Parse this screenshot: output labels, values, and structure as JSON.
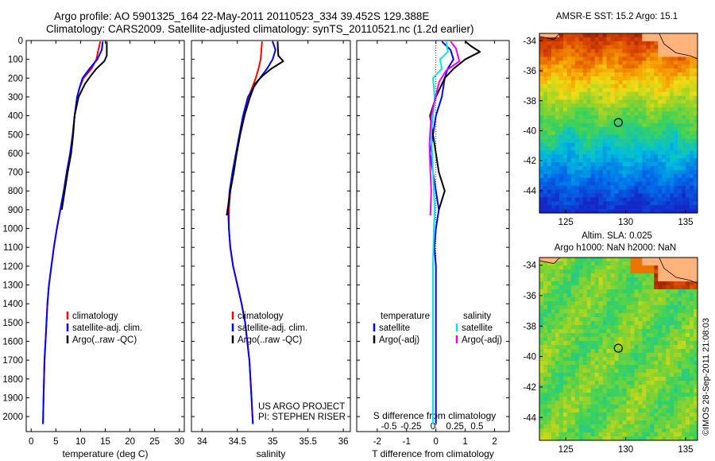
{
  "header": {
    "line1": "Argo profile: AO 5901325_164 22-May-2011 20110523_334 39.452S 129.388E",
    "line2": "Climatology: CARS2009. Satellite-adjusted climatology: synTS_20110521.nc (1.2d earlier)"
  },
  "colors": {
    "climatology": "#ff0000",
    "satellite": "#0000ff",
    "argo": "#000000",
    "sal_satellite": "#00e5ee",
    "sal_argo": "#ee00ee"
  },
  "chart_data": [
    {
      "type": "line",
      "name": "temperature-profile",
      "xlabel": "temperature (deg C)",
      "ylabel": "",
      "xlim": [
        -1,
        31
      ],
      "ylim": [
        2080,
        0
      ],
      "xticks": [
        0,
        5,
        10,
        15,
        20,
        25,
        30
      ],
      "yticks": [
        0,
        100,
        200,
        300,
        400,
        500,
        600,
        700,
        800,
        900,
        1000,
        1100,
        1200,
        1300,
        1400,
        1500,
        1600,
        1700,
        1800,
        1900,
        2000
      ],
      "legend": [
        "climatology",
        "satellite-adj. clim.",
        "Argo(..raw -QC)"
      ],
      "series": [
        {
          "name": "climatology",
          "x": [
            14.0,
            13.6,
            13.2,
            12.2,
            10.6,
            9.8,
            9.3,
            8.8,
            8.4,
            7.9,
            7.2,
            6.6,
            5.9,
            5.2,
            4.6,
            4.1,
            3.6,
            3.3,
            3.1,
            2.9,
            2.7,
            2.5,
            2.4
          ],
          "y": [
            5,
            50,
            100,
            150,
            200,
            250,
            300,
            400,
            500,
            600,
            700,
            800,
            900,
            1000,
            1100,
            1200,
            1300,
            1400,
            1500,
            1600,
            1700,
            1900,
            2040
          ]
        },
        {
          "name": "satellite-adj. clim.",
          "x": [
            14.5,
            14.3,
            13.4,
            11.8,
            10.4,
            9.8,
            9.3,
            8.8,
            8.4,
            7.9,
            7.2,
            6.6,
            5.9,
            5.2,
            4.6,
            4.1,
            3.6,
            3.3,
            3.1,
            2.9,
            2.7,
            2.5,
            2.4
          ],
          "y": [
            5,
            50,
            100,
            150,
            200,
            250,
            300,
            400,
            500,
            600,
            700,
            800,
            900,
            1000,
            1100,
            1200,
            1300,
            1400,
            1500,
            1600,
            1700,
            1900,
            2040
          ]
        },
        {
          "name": "Argo(..raw -QC)",
          "x": [
            15.3,
            15.3,
            14.8,
            13.2,
            12.0,
            10.9,
            9.6,
            8.8,
            8.5,
            8.1,
            7.4,
            6.8,
            6.2
          ],
          "y": [
            5,
            80,
            110,
            150,
            190,
            230,
            300,
            400,
            500,
            600,
            700,
            800,
            900
          ]
        }
      ]
    },
    {
      "type": "line",
      "name": "salinity-profile",
      "xlabel": "salinity",
      "xlim": [
        33.85,
        36.1
      ],
      "ylim": [
        2080,
        0
      ],
      "xticks": [
        34,
        34.5,
        35,
        35.5,
        36
      ],
      "xticklabels": [
        "34",
        "34.5",
        "35",
        "35.5",
        "36"
      ],
      "legend": [
        "climatology",
        "satellite-adj. clim.",
        "Argo(..raw -QC)"
      ],
      "annotation": [
        "US ARGO PROJECT",
        "PI: STEPHEN RISER"
      ],
      "series": [
        {
          "name": "climatology",
          "x": [
            34.85,
            34.84,
            34.83,
            34.8,
            34.76,
            34.71,
            34.66,
            34.6,
            34.54,
            34.49,
            34.44,
            34.4,
            34.38,
            34.38,
            34.4,
            34.44,
            34.5,
            34.56,
            34.61,
            34.64,
            34.67,
            34.7,
            34.72
          ],
          "y": [
            5,
            50,
            100,
            150,
            200,
            250,
            300,
            400,
            500,
            600,
            700,
            800,
            900,
            1000,
            1100,
            1200,
            1300,
            1400,
            1500,
            1600,
            1700,
            1900,
            2040
          ]
        },
        {
          "name": "satellite-adj. clim.",
          "x": [
            35.0,
            35.04,
            35.0,
            34.92,
            34.82,
            34.73,
            34.65,
            34.58,
            34.53,
            34.48,
            34.43,
            34.39,
            34.37,
            34.38,
            34.4,
            34.44,
            34.5,
            34.56,
            34.61,
            34.64,
            34.67,
            34.7,
            34.72
          ],
          "y": [
            5,
            50,
            100,
            150,
            200,
            250,
            300,
            400,
            500,
            600,
            700,
            800,
            900,
            1000,
            1100,
            1200,
            1300,
            1400,
            1500,
            1600,
            1700,
            1900,
            2040
          ]
        },
        {
          "name": "Argo(..raw -QC)",
          "x": [
            35.07,
            35.08,
            35.15,
            34.98,
            34.85,
            34.75,
            34.68,
            34.6,
            34.54,
            34.49,
            34.45,
            34.4,
            34.35
          ],
          "y": [
            5,
            80,
            110,
            150,
            190,
            230,
            300,
            400,
            500,
            600,
            700,
            800,
            930
          ]
        }
      ]
    },
    {
      "type": "line",
      "name": "difference-profile",
      "xlabel": "T difference from climatology",
      "xlabel_top": "S difference from climatology",
      "xlim": [
        -2.7,
        2.5
      ],
      "ylim": [
        2080,
        0
      ],
      "xticks": [
        -2,
        -1,
        0,
        1,
        2
      ],
      "xticklabels": [
        "-2",
        "-1",
        "0",
        "1",
        "2"
      ],
      "sticks": [
        -0.5,
        -0.25,
        0,
        0.25,
        0.5
      ],
      "sticklabels": [
        "-0.5",
        "-0.25",
        "0",
        "0.25",
        "0.5"
      ],
      "legend": {
        "temperature": [
          "satellite",
          "Argo(-adj)"
        ],
        "salinity": [
          "satellite",
          "Argo(-adj)"
        ]
      },
      "legend_headers": [
        "temperature",
        "salinity"
      ],
      "series": [
        {
          "name": "T satellite",
          "x": [
            0.2,
            0.5,
            0.6,
            0.4,
            0.3,
            0.2,
            0.0,
            -0.1,
            -0.2,
            -0.1,
            0.0,
            0.1,
            0.0,
            -0.05,
            0.0,
            0.0,
            0.0,
            0.0,
            0.0,
            0.0
          ],
          "y": [
            5,
            50,
            100,
            150,
            200,
            300,
            400,
            500,
            600,
            700,
            800,
            900,
            1000,
            1100,
            1200,
            1400,
            1600,
            1800,
            1900,
            2040
          ]
        },
        {
          "name": "T Argo(-adj)",
          "x": [
            1.0,
            1.2,
            1.5,
            1.0,
            0.6,
            0.3,
            0.0,
            -0.2,
            -0.1,
            0.0,
            0.1,
            0.2,
            0.3,
            0.2,
            0.1
          ],
          "y": [
            5,
            30,
            60,
            100,
            150,
            200,
            300,
            400,
            500,
            600,
            700,
            750,
            800,
            850,
            900
          ]
        },
        {
          "name": "S satellite",
          "x": [
            0.15,
            0.17,
            0.08,
            0.1,
            0.0,
            0.02,
            0.0,
            -0.02,
            -0.01,
            0.0,
            0.01,
            0.02,
            0.01,
            0.0,
            0.0,
            0.0,
            0.0,
            0.0,
            0.0
          ],
          "y": [
            5,
            60,
            100,
            150,
            200,
            300,
            400,
            500,
            600,
            700,
            800,
            900,
            1000,
            1200,
            1400,
            1600,
            1800,
            1900,
            2040
          ]
        },
        {
          "name": "S Argo(-adj)",
          "x": [
            0.2,
            0.26,
            0.3,
            0.15,
            0.07,
            0.03,
            -0.02,
            -0.04,
            -0.03,
            -0.02,
            -0.03
          ],
          "y": [
            5,
            40,
            110,
            160,
            220,
            300,
            400,
            550,
            700,
            800,
            930
          ]
        }
      ]
    },
    {
      "type": "heatmap",
      "name": "sst-map",
      "title": "AMSR-E SST: 15.2  Argo: 15.1",
      "xlim": [
        122.8,
        136
      ],
      "ylim": [
        -45.5,
        -33.5
      ],
      "xticks": [
        125,
        130,
        135
      ],
      "yticks": [
        -34,
        -36,
        -38,
        -40,
        -42,
        -44
      ],
      "marker": {
        "lon": 129.388,
        "lat": -39.452
      }
    },
    {
      "type": "heatmap",
      "name": "sla-map",
      "title": "Altim. SLA: 0.025",
      "subtitle": "Argo h1000: NaN  h2000: NaN",
      "xlim": [
        122.8,
        136
      ],
      "ylim": [
        -45.5,
        -33.5
      ],
      "xticks": [
        125,
        130,
        135
      ],
      "yticks": [
        -34,
        -36,
        -38,
        -40,
        -42,
        -44
      ],
      "marker": {
        "lon": 129.388,
        "lat": -39.452
      }
    }
  ],
  "stamp": "©IMOS 28-Sep-2011 21:08:03"
}
